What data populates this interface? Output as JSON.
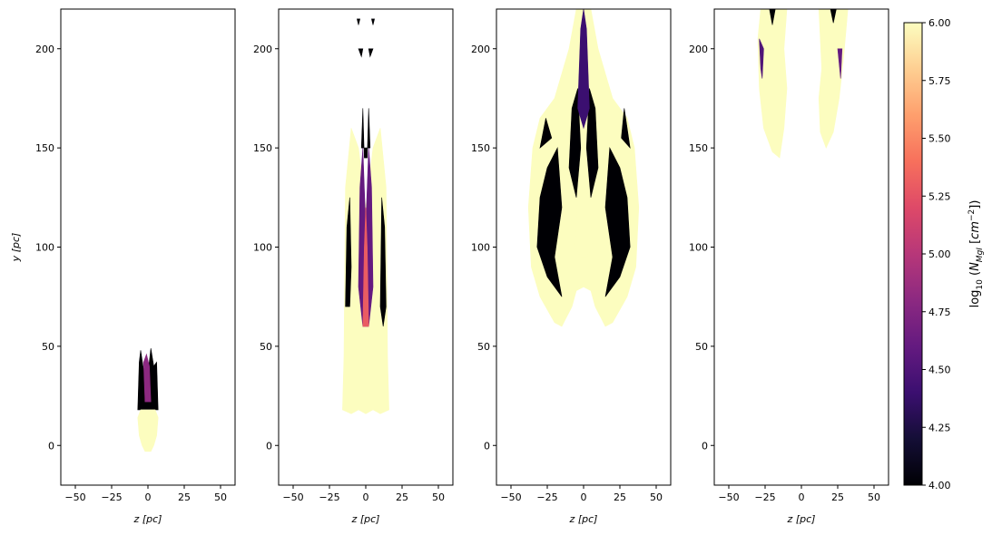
{
  "figure": {
    "colormap": "magma",
    "colorbar": {
      "label": "log₁₀ (N_MgI [cm⁻²])",
      "range": [
        4.0,
        6.0
      ],
      "ticks": [
        "4.00",
        "4.25",
        "4.50",
        "4.75",
        "5.00",
        "5.25",
        "5.50",
        "5.75",
        "6.00"
      ],
      "stops": [
        "#000004",
        "#140e36",
        "#3b0f70",
        "#641a80",
        "#8c2981",
        "#b73779",
        "#de4968",
        "#f7705c",
        "#fe9f6d",
        "#fecf92",
        "#fcfdbf"
      ]
    }
  },
  "chart_data": [
    {
      "type": "heatmap",
      "panel": 1,
      "xlabel": "z [pc]",
      "ylabel": "y [pc]",
      "xlim": [
        -60,
        60
      ],
      "ylim": [
        -20,
        220
      ],
      "xticks": [
        "−50",
        "−25",
        "0",
        "25",
        "50"
      ],
      "yticks": [
        "0",
        "50",
        "100",
        "150",
        "200"
      ],
      "regions": [
        {
          "value": 4.0,
          "polygon": [
            [
              -6,
              42
            ],
            [
              -5,
              48
            ],
            [
              -3,
              38
            ],
            [
              -1,
              45
            ],
            [
              0,
              36
            ],
            [
              2,
              49
            ],
            [
              4,
              40
            ],
            [
              6,
              42
            ],
            [
              7,
              18
            ],
            [
              -7,
              18
            ]
          ]
        },
        {
          "value": 4.8,
          "polygon": [
            [
              -3,
              42
            ],
            [
              -1,
              46
            ],
            [
              1,
              40
            ],
            [
              2,
              22
            ],
            [
              -2,
              22
            ]
          ]
        },
        {
          "value": 6.0,
          "polygon": [
            [
              -7,
              14
            ],
            [
              -6,
              5
            ],
            [
              -4,
              0
            ],
            [
              -2,
              -3
            ],
            [
              2,
              -3
            ],
            [
              4,
              0
            ],
            [
              6,
              5
            ],
            [
              7,
              14
            ],
            [
              5,
              18
            ],
            [
              -5,
              18
            ]
          ]
        }
      ]
    },
    {
      "type": "heatmap",
      "panel": 2,
      "xlabel": "z [pc]",
      "xlim": [
        -60,
        60
      ],
      "ylim": [
        -20,
        220
      ],
      "xticks": [
        "−50",
        "−25",
        "0",
        "25",
        "50"
      ],
      "yticks": [
        "0",
        "50",
        "100",
        "150",
        "200"
      ],
      "regions": [
        {
          "value": 6.0,
          "polygon": [
            [
              -15,
              45
            ],
            [
              -14,
              130
            ],
            [
              -10,
              160
            ],
            [
              -5,
              150
            ],
            [
              0,
              120
            ],
            [
              5,
              150
            ],
            [
              10,
              160
            ],
            [
              14,
              130
            ],
            [
              15,
              45
            ],
            [
              16,
              18
            ],
            [
              10,
              16
            ],
            [
              5,
              18
            ],
            [
              0,
              16
            ],
            [
              -5,
              18
            ],
            [
              -10,
              16
            ],
            [
              -16,
              18
            ]
          ]
        },
        {
          "value": 4.0,
          "polygon": [
            [
              -14,
              70
            ],
            [
              -13,
              110
            ],
            [
              -11,
              125
            ],
            [
              -10,
              90
            ],
            [
              -11,
              70
            ]
          ]
        },
        {
          "value": 4.0,
          "polygon": [
            [
              10,
              70
            ],
            [
              11,
              125
            ],
            [
              13,
              110
            ],
            [
              14,
              70
            ],
            [
              12,
              60
            ]
          ]
        },
        {
          "value": 4.6,
          "polygon": [
            [
              -5,
              80
            ],
            [
              -4,
              130
            ],
            [
              -2,
              150
            ],
            [
              0,
              110
            ],
            [
              2,
              150
            ],
            [
              4,
              130
            ],
            [
              5,
              80
            ],
            [
              2,
              60
            ],
            [
              -2,
              60
            ]
          ]
        },
        {
          "value": 5.3,
          "polygon": [
            [
              -2,
              60
            ],
            [
              -1,
              100
            ],
            [
              0,
              120
            ],
            [
              1,
              100
            ],
            [
              2,
              60
            ]
          ]
        },
        {
          "value": 4.0,
          "polygon": [
            [
              -3,
              150
            ],
            [
              -2,
              170
            ],
            [
              -1,
              145
            ],
            [
              1,
              145
            ],
            [
              2,
              170
            ],
            [
              3,
              150
            ]
          ]
        },
        {
          "value": 4.0,
          "polygon": [
            [
              -5,
              200
            ],
            [
              -3,
              196
            ],
            [
              -2,
              200
            ]
          ]
        },
        {
          "value": 4.0,
          "polygon": [
            [
              2,
              200
            ],
            [
              3,
              196
            ],
            [
              5,
              200
            ]
          ]
        },
        {
          "value": 4.0,
          "polygon": [
            [
              -6,
              215
            ],
            [
              -5,
              212
            ],
            [
              -4,
              215
            ]
          ]
        },
        {
          "value": 4.0,
          "polygon": [
            [
              4,
              215
            ],
            [
              5,
              212
            ],
            [
              6,
              215
            ]
          ]
        }
      ]
    },
    {
      "type": "heatmap",
      "panel": 3,
      "xlabel": "z [pc]",
      "xlim": [
        -60,
        60
      ],
      "ylim": [
        -20,
        220
      ],
      "xticks": [
        "−50",
        "−25",
        "0",
        "25",
        "50"
      ],
      "yticks": [
        "0",
        "50",
        "100",
        "150",
        "200"
      ],
      "regions": [
        {
          "value": 6.0,
          "polygon": [
            [
              -38,
              120
            ],
            [
              -35,
              150
            ],
            [
              -30,
              165
            ],
            [
              -20,
              175
            ],
            [
              -10,
              200
            ],
            [
              -5,
              220
            ],
            [
              5,
              220
            ],
            [
              10,
              200
            ],
            [
              20,
              175
            ],
            [
              30,
              165
            ],
            [
              35,
              150
            ],
            [
              38,
              120
            ],
            [
              36,
              90
            ],
            [
              30,
              75
            ],
            [
              20,
              62
            ],
            [
              15,
              60
            ],
            [
              8,
              70
            ],
            [
              5,
              78
            ],
            [
              0,
              80
            ],
            [
              -5,
              78
            ],
            [
              -8,
              70
            ],
            [
              -15,
              60
            ],
            [
              -20,
              62
            ],
            [
              -30,
              75
            ],
            [
              -36,
              90
            ]
          ]
        },
        {
          "value": 4.0,
          "polygon": [
            [
              -32,
              100
            ],
            [
              -30,
              125
            ],
            [
              -25,
              140
            ],
            [
              -18,
              150
            ],
            [
              -15,
              120
            ],
            [
              -20,
              95
            ],
            [
              -15,
              75
            ],
            [
              -25,
              85
            ]
          ]
        },
        {
          "value": 4.0,
          "polygon": [
            [
              32,
              100
            ],
            [
              30,
              125
            ],
            [
              25,
              140
            ],
            [
              18,
              150
            ],
            [
              15,
              120
            ],
            [
              20,
              95
            ],
            [
              15,
              75
            ],
            [
              25,
              85
            ]
          ]
        },
        {
          "value": 4.0,
          "polygon": [
            [
              -10,
              140
            ],
            [
              -8,
              170
            ],
            [
              -4,
              180
            ],
            [
              -2,
              150
            ],
            [
              -5,
              125
            ]
          ]
        },
        {
          "value": 4.0,
          "polygon": [
            [
              10,
              140
            ],
            [
              8,
              170
            ],
            [
              4,
              180
            ],
            [
              2,
              150
            ],
            [
              5,
              125
            ]
          ]
        },
        {
          "value": 4.4,
          "polygon": [
            [
              -4,
              170
            ],
            [
              -2,
              210
            ],
            [
              0,
              220
            ],
            [
              2,
              210
            ],
            [
              4,
              170
            ],
            [
              0,
              160
            ]
          ]
        },
        {
          "value": 4.0,
          "polygon": [
            [
              -30,
              150
            ],
            [
              -26,
              165
            ],
            [
              -22,
              155
            ]
          ]
        },
        {
          "value": 4.0,
          "polygon": [
            [
              26,
              155
            ],
            [
              28,
              170
            ],
            [
              32,
              150
            ]
          ]
        },
        {
          "value": 6.0,
          "polygon": [
            [
              -6,
              100
            ],
            [
              -4,
              125
            ],
            [
              0,
              130
            ],
            [
              4,
              125
            ],
            [
              6,
              100
            ],
            [
              2,
              95
            ],
            [
              -2,
              95
            ]
          ]
        }
      ]
    },
    {
      "type": "heatmap",
      "panel": 4,
      "xlabel": "z [pc]",
      "xlim": [
        -60,
        60
      ],
      "ylim": [
        -20,
        220
      ],
      "xticks": [
        "−50",
        "−25",
        "0",
        "25",
        "50"
      ],
      "yticks": [
        "0",
        "50",
        "100",
        "150",
        "200"
      ],
      "regions": [
        {
          "value": 6.0,
          "polygon": [
            [
              -28,
              220
            ],
            [
              -30,
              205
            ],
            [
              -29,
              180
            ],
            [
              -26,
              160
            ],
            [
              -20,
              148
            ],
            [
              -15,
              145
            ],
            [
              -12,
              160
            ],
            [
              -10,
              180
            ],
            [
              -12,
              200
            ],
            [
              -10,
              220
            ]
          ]
        },
        {
          "value": 6.0,
          "polygon": [
            [
              12,
              220
            ],
            [
              14,
              190
            ],
            [
              12,
              175
            ],
            [
              13,
              158
            ],
            [
              17,
              150
            ],
            [
              22,
              158
            ],
            [
              26,
              175
            ],
            [
              29,
              195
            ],
            [
              32,
              220
            ]
          ]
        },
        {
          "value": 4.5,
          "polygon": [
            [
              -29,
              205
            ],
            [
              -28,
              190
            ],
            [
              -27,
              185
            ],
            [
              -26,
              200
            ]
          ]
        },
        {
          "value": 4.0,
          "polygon": [
            [
              -22,
              220
            ],
            [
              -20,
              212
            ],
            [
              -18,
              220
            ]
          ]
        },
        {
          "value": 4.0,
          "polygon": [
            [
              20,
              220
            ],
            [
              22,
              213
            ],
            [
              24,
              220
            ]
          ]
        },
        {
          "value": 4.6,
          "polygon": [
            [
              25,
              200
            ],
            [
              27,
              185
            ],
            [
              28,
              200
            ]
          ]
        }
      ]
    }
  ]
}
